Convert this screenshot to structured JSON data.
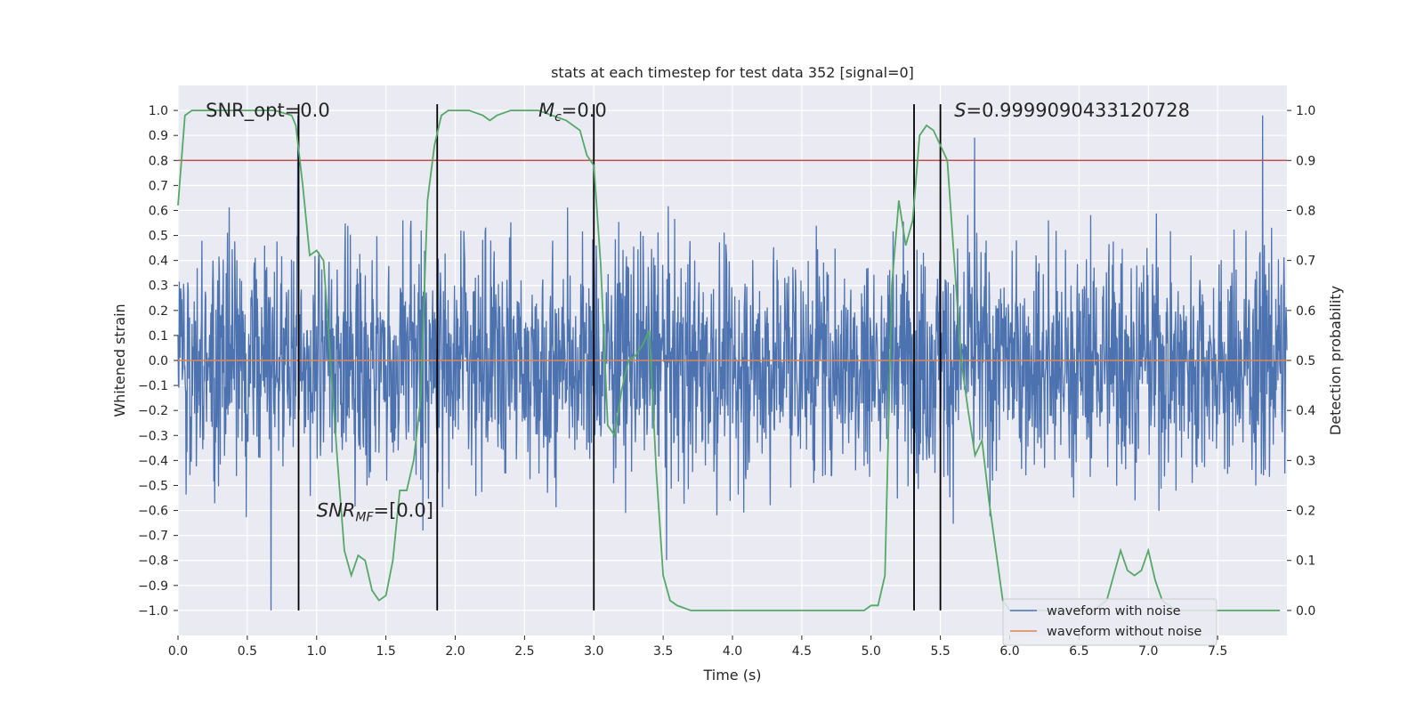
{
  "chart_data": {
    "type": "line",
    "title": "stats at each timestep for test data 352 [signal=0]",
    "xlabel": "Time (s)",
    "ylabel_left": "Whitened strain",
    "ylabel_right": "Detection probability",
    "xlim": [
      0,
      8
    ],
    "ylim_left": [
      -1.1,
      1.1
    ],
    "ylim_right": [
      -0.05,
      1.05
    ],
    "x_ticks": [
      0.0,
      0.5,
      1.0,
      1.5,
      2.0,
      2.5,
      3.0,
      3.5,
      4.0,
      4.5,
      5.0,
      5.5,
      6.0,
      6.5,
      7.0,
      7.5
    ],
    "x_tick_labels": [
      "0.0",
      "0.5",
      "1.0",
      "1.5",
      "2.0",
      "2.5",
      "3.0",
      "3.5",
      "4.0",
      "4.5",
      "5.0",
      "5.5",
      "6.0",
      "6.5",
      "7.0",
      "7.5"
    ],
    "y_left_ticks": [
      1.0,
      0.9,
      0.8,
      0.7,
      0.6,
      0.5,
      0.4,
      0.3,
      0.2,
      0.1,
      0.0,
      -0.1,
      -0.2,
      -0.3,
      -0.4,
      -0.5,
      -0.6,
      -0.7,
      -0.8,
      -0.9,
      -1.0
    ],
    "y_left_tick_labels": [
      "1.0",
      "0.9",
      "0.8",
      "0.7",
      "0.6",
      "0.5",
      "0.4",
      "0.3",
      "0.2",
      "0.1",
      "0.0",
      "−0.1",
      "−0.2",
      "−0.3",
      "−0.4",
      "−0.5",
      "−0.6",
      "−0.7",
      "−0.8",
      "−0.9",
      "−1.0"
    ],
    "y_right_ticks": [
      1.0,
      0.9,
      0.8,
      0.7,
      0.6,
      0.5,
      0.4,
      0.3,
      0.2,
      0.1,
      0.0
    ],
    "y_right_tick_labels": [
      "1.0",
      "0.9",
      "0.8",
      "0.7",
      "0.6",
      "0.5",
      "0.4",
      "0.3",
      "0.2",
      "0.1",
      "0.0"
    ],
    "grid": true,
    "legend_position": "lower-right",
    "series": [
      {
        "name": "waveform with noise",
        "color": "#4c72b0",
        "axis": "left",
        "description": "noisy whitened strain, dense vertical fluctuation roughly between -1.0 and 1.0"
      },
      {
        "name": "waveform without noise",
        "color": "#dd8452",
        "axis": "left",
        "values_constant": 0.0
      },
      {
        "name": "",
        "color": "#55a868",
        "axis": "right",
        "x": [
          0.0,
          0.05,
          0.1,
          0.15,
          0.3,
          0.5,
          0.7,
          0.82,
          0.85,
          0.9,
          0.95,
          1.0,
          1.05,
          1.1,
          1.15,
          1.2,
          1.25,
          1.3,
          1.35,
          1.4,
          1.45,
          1.5,
          1.55,
          1.6,
          1.65,
          1.7,
          1.75,
          1.8,
          1.85,
          1.9,
          1.95,
          2.0,
          2.1,
          2.2,
          2.25,
          2.3,
          2.4,
          2.5,
          2.6,
          2.7,
          2.8,
          2.9,
          2.95,
          3.0,
          3.05,
          3.1,
          3.15,
          3.2,
          3.25,
          3.3,
          3.35,
          3.4,
          3.45,
          3.5,
          3.55,
          3.6,
          3.7,
          3.8,
          4.0,
          4.5,
          4.7,
          4.9,
          4.95,
          5.0,
          5.05,
          5.1,
          5.15,
          5.2,
          5.25,
          5.3,
          5.35,
          5.4,
          5.45,
          5.5,
          5.55,
          5.6,
          5.65,
          5.7,
          5.75,
          5.8,
          5.85,
          5.9,
          5.95,
          6.0,
          6.2,
          6.5,
          6.6,
          6.7,
          6.75,
          6.8,
          6.85,
          6.9,
          6.95,
          7.0,
          7.05,
          7.1,
          7.2,
          7.5,
          7.8,
          7.95
        ],
        "values": [
          0.81,
          0.99,
          1.0,
          1.0,
          1.0,
          1.0,
          1.0,
          0.99,
          0.97,
          0.85,
          0.71,
          0.72,
          0.7,
          0.5,
          0.3,
          0.12,
          0.07,
          0.11,
          0.1,
          0.04,
          0.02,
          0.03,
          0.1,
          0.24,
          0.24,
          0.3,
          0.42,
          0.82,
          0.93,
          0.99,
          1.0,
          1.0,
          1.0,
          0.99,
          0.98,
          0.99,
          1.0,
          1.0,
          1.0,
          0.99,
          0.98,
          0.96,
          0.91,
          0.89,
          0.69,
          0.37,
          0.35,
          0.44,
          0.5,
          0.51,
          0.53,
          0.56,
          0.28,
          0.07,
          0.02,
          0.01,
          0.0,
          0.0,
          0.0,
          0.0,
          0.0,
          0.0,
          0.0,
          0.01,
          0.01,
          0.07,
          0.65,
          0.82,
          0.73,
          0.78,
          0.95,
          0.97,
          0.96,
          0.93,
          0.9,
          0.7,
          0.5,
          0.4,
          0.31,
          0.34,
          0.22,
          0.12,
          0.02,
          0.0,
          0.0,
          0.0,
          0.0,
          0.02,
          0.07,
          0.12,
          0.08,
          0.07,
          0.08,
          0.12,
          0.06,
          0.02,
          0.0,
          0.0,
          0.0,
          0.0
        ]
      }
    ],
    "threshold_line": {
      "value": 0.9,
      "axis": "right",
      "color": "#c44e52"
    },
    "vertical_lines": [
      0.87,
      1.87,
      3.0,
      5.31,
      5.5
    ],
    "annotations": [
      {
        "text": "SNR_opt=0.0",
        "x": 0.2,
        "y": 1.0
      },
      {
        "text_main": "SNR",
        "text_sub": "MF",
        "text_rest": "=[0.0]",
        "x": 1.0,
        "y": -0.6
      },
      {
        "text_main": "M",
        "text_sub": "c",
        "text_rest": "=0.0",
        "x": 2.6,
        "y": 1.0
      },
      {
        "text_main": "S",
        "text_rest": "=0.9999090433120728",
        "x": 5.6,
        "y": 1.0
      }
    ]
  }
}
